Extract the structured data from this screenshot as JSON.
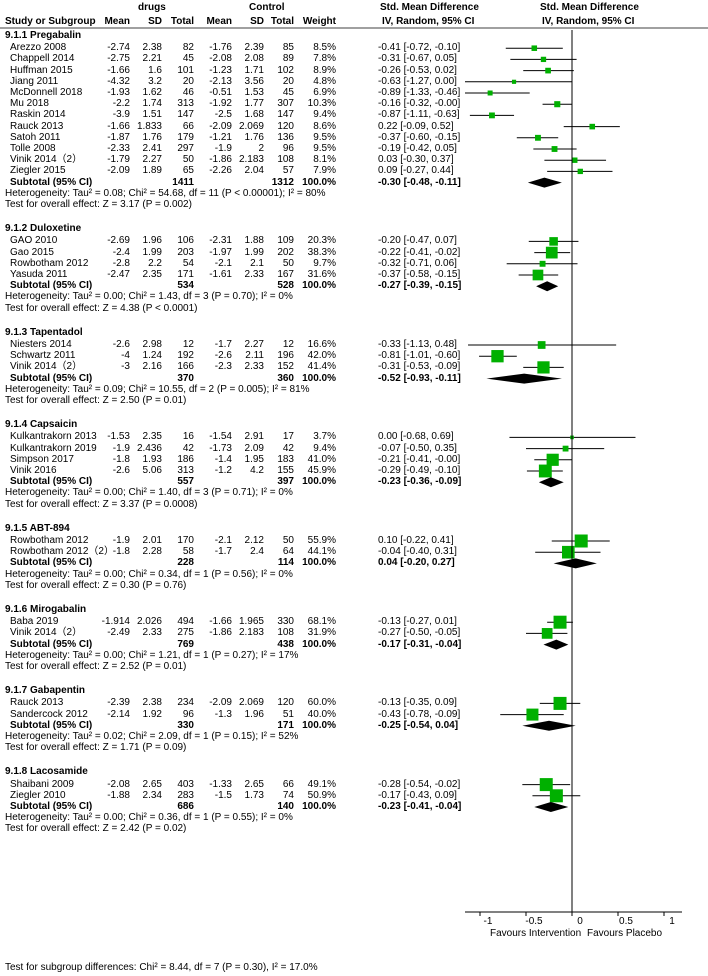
{
  "headers": {
    "study": "Study or Subgroup",
    "drugs": "drugs",
    "control": "Control",
    "mean": "Mean",
    "sd": "SD",
    "total": "Total",
    "weight": "Weight",
    "smd_title": "Std. Mean Difference",
    "smd_method": "IV, Random, 95% CI"
  },
  "axis": {
    "ticks": [
      "-1",
      "-0.5",
      "0",
      "0.5",
      "1"
    ],
    "left_label": "Favours Intervention",
    "right_label": "Favours Placebo"
  },
  "footer": "Test for subgroup differences: Chi² = 8.44, df = 7 (P = 0.30), I² = 17.0%",
  "colors": {
    "marker": "#00b000",
    "diamond": "#000000",
    "line": "#000000"
  },
  "chart_data": {
    "type": "forest",
    "xlim": [
      -1.5,
      1.5
    ],
    "groups": [
      {
        "title": "9.1.1 Pregabalin",
        "studies": [
          {
            "name": "Arezzo 2008",
            "m1": "-2.74",
            "sd1": "2.38",
            "n1": "82",
            "m2": "-1.76",
            "sd2": "2.39",
            "n2": "85",
            "weight": "8.5%",
            "ci": "-0.41 [-0.72, -0.10]",
            "est": -0.41,
            "lo": -0.72,
            "hi": -0.1,
            "w": 8.5
          },
          {
            "name": "Chappell 2014",
            "m1": "-2.75",
            "sd1": "2.21",
            "n1": "45",
            "m2": "-2.08",
            "sd2": "2.08",
            "n2": "89",
            "weight": "7.8%",
            "ci": "-0.31 [-0.67, 0.05]",
            "est": -0.31,
            "lo": -0.67,
            "hi": 0.05,
            "w": 7.8
          },
          {
            "name": "Huffman 2015",
            "m1": "-1.66",
            "sd1": "1.6",
            "n1": "101",
            "m2": "-1.23",
            "sd2": "1.71",
            "n2": "102",
            "weight": "8.9%",
            "ci": "-0.26 [-0.53, 0.02]",
            "est": -0.26,
            "lo": -0.53,
            "hi": 0.02,
            "w": 8.9
          },
          {
            "name": "Jiang 2011",
            "m1": "-4.32",
            "sd1": "3.2",
            "n1": "20",
            "m2": "-2.13",
            "sd2": "3.56",
            "n2": "20",
            "weight": "4.8%",
            "ci": "-0.63 [-1.27, 0.00]",
            "est": -0.63,
            "lo": -1.27,
            "hi": 0.0,
            "w": 4.8
          },
          {
            "name": "McDonnell 2018",
            "m1": "-1.93",
            "sd1": "1.62",
            "n1": "46",
            "m2": "-0.51",
            "sd2": "1.53",
            "n2": "45",
            "weight": "6.9%",
            "ci": "-0.89 [-1.33, -0.46]",
            "est": -0.89,
            "lo": -1.33,
            "hi": -0.46,
            "w": 6.9
          },
          {
            "name": "Mu 2018",
            "m1": "-2.2",
            "sd1": "1.74",
            "n1": "313",
            "m2": "-1.92",
            "sd2": "1.77",
            "n2": "307",
            "weight": "10.3%",
            "ci": "-0.16 [-0.32, -0.00]",
            "est": -0.16,
            "lo": -0.32,
            "hi": -0.0,
            "w": 10.3
          },
          {
            "name": "Raskin 2014",
            "m1": "-3.9",
            "sd1": "1.51",
            "n1": "147",
            "m2": "-2.5",
            "sd2": "1.68",
            "n2": "147",
            "weight": "9.4%",
            "ci": "-0.87 [-1.11, -0.63]",
            "est": -0.87,
            "lo": -1.11,
            "hi": -0.63,
            "w": 9.4
          },
          {
            "name": "Rauck 2013",
            "m1": "-1.66",
            "sd1": "1.833",
            "n1": "66",
            "m2": "-2.09",
            "sd2": "2.069",
            "n2": "120",
            "weight": "8.6%",
            "ci": "0.22 [-0.09, 0.52]",
            "est": 0.22,
            "lo": -0.09,
            "hi": 0.52,
            "w": 8.6
          },
          {
            "name": "Satoh 2011",
            "m1": "-1.87",
            "sd1": "1.76",
            "n1": "179",
            "m2": "-1.21",
            "sd2": "1.76",
            "n2": "136",
            "weight": "9.5%",
            "ci": "-0.37 [-0.60, -0.15]",
            "est": -0.37,
            "lo": -0.6,
            "hi": -0.15,
            "w": 9.5
          },
          {
            "name": "Tolle 2008",
            "m1": "-2.33",
            "sd1": "2.41",
            "n1": "297",
            "m2": "-1.9",
            "sd2": "2",
            "n2": "96",
            "weight": "9.5%",
            "ci": "-0.19 [-0.42, 0.05]",
            "est": -0.19,
            "lo": -0.42,
            "hi": 0.05,
            "w": 9.5
          },
          {
            "name": "Vinik 2014（2）",
            "m1": "-1.79",
            "sd1": "2.27",
            "n1": "50",
            "m2": "-1.86",
            "sd2": "2.183",
            "n2": "108",
            "weight": "8.1%",
            "ci": "0.03 [-0.30, 0.37]",
            "est": 0.03,
            "lo": -0.3,
            "hi": 0.37,
            "w": 8.1
          },
          {
            "name": "Ziegler 2015",
            "m1": "-2.09",
            "sd1": "1.89",
            "n1": "65",
            "m2": "-2.26",
            "sd2": "2.04",
            "n2": "57",
            "weight": "7.9%",
            "ci": "0.09 [-0.27, 0.44]",
            "est": 0.09,
            "lo": -0.27,
            "hi": 0.44,
            "w": 7.9
          }
        ],
        "subtotal": {
          "label": "Subtotal (95% CI)",
          "n1": "1411",
          "n2": "1312",
          "weight": "100.0%",
          "ci": "-0.30 [-0.48, -0.11]",
          "est": -0.3,
          "lo": -0.48,
          "hi": -0.11
        },
        "het": "Heterogeneity: Tau² = 0.08; Chi² = 54.68, df = 11 (P < 0.00001); I² = 80%",
        "test": "Test for overall effect: Z = 3.17 (P = 0.002)"
      },
      {
        "title": "9.1.2 Duloxetine",
        "studies": [
          {
            "name": "GAO 2010",
            "m1": "-2.69",
            "sd1": "1.96",
            "n1": "106",
            "m2": "-2.31",
            "sd2": "1.88",
            "n2": "109",
            "weight": "20.3%",
            "ci": "-0.20 [-0.47, 0.07]",
            "est": -0.2,
            "lo": -0.47,
            "hi": 0.07,
            "w": 20.3
          },
          {
            "name": "Gao 2015",
            "m1": "-2.4",
            "sd1": "1.99",
            "n1": "203",
            "m2": "-1.97",
            "sd2": "1.99",
            "n2": "202",
            "weight": "38.3%",
            "ci": "-0.22 [-0.41, -0.02]",
            "est": -0.22,
            "lo": -0.41,
            "hi": -0.02,
            "w": 38.3
          },
          {
            "name": "Rowbotham 2012",
            "m1": "-2.8",
            "sd1": "2.2",
            "n1": "54",
            "m2": "-2.1",
            "sd2": "2.1",
            "n2": "50",
            "weight": "9.7%",
            "ci": "-0.32 [-0.71, 0.06]",
            "est": -0.32,
            "lo": -0.71,
            "hi": 0.06,
            "w": 9.7
          },
          {
            "name": "Yasuda 2011",
            "m1": "-2.47",
            "sd1": "2.35",
            "n1": "171",
            "m2": "-1.61",
            "sd2": "2.33",
            "n2": "167",
            "weight": "31.6%",
            "ci": "-0.37 [-0.58, -0.15]",
            "est": -0.37,
            "lo": -0.58,
            "hi": -0.15,
            "w": 31.6
          }
        ],
        "subtotal": {
          "label": "Subtotal (95% CI)",
          "n1": "534",
          "n2": "528",
          "weight": "100.0%",
          "ci": "-0.27 [-0.39, -0.15]",
          "est": -0.27,
          "lo": -0.39,
          "hi": -0.15
        },
        "het": "Heterogeneity: Tau² = 0.00; Chi² = 1.43, df = 3 (P = 0.70); I² = 0%",
        "test": "Test for overall effect: Z = 4.38 (P < 0.0001)"
      },
      {
        "title": "9.1.3 Tapentadol",
        "studies": [
          {
            "name": "Niesters 2014",
            "m1": "-2.6",
            "sd1": "2.98",
            "n1": "12",
            "m2": "-1.7",
            "sd2": "2.27",
            "n2": "12",
            "weight": "16.6%",
            "ci": "-0.33 [-1.13, 0.48]",
            "est": -0.33,
            "lo": -1.13,
            "hi": 0.48,
            "w": 16.6
          },
          {
            "name": "Schwartz 2011",
            "m1": "-4",
            "sd1": "1.24",
            "n1": "192",
            "m2": "-2.6",
            "sd2": "2.11",
            "n2": "196",
            "weight": "42.0%",
            "ci": "-0.81 [-1.01, -0.60]",
            "est": -0.81,
            "lo": -1.01,
            "hi": -0.6,
            "w": 42.0
          },
          {
            "name": "Vinik 2014（2）",
            "m1": "-3",
            "sd1": "2.16",
            "n1": "166",
            "m2": "-2.3",
            "sd2": "2.33",
            "n2": "152",
            "weight": "41.4%",
            "ci": "-0.31 [-0.53, -0.09]",
            "est": -0.31,
            "lo": -0.53,
            "hi": -0.09,
            "w": 41.4
          }
        ],
        "subtotal": {
          "label": "Subtotal (95% CI)",
          "n1": "370",
          "n2": "360",
          "weight": "100.0%",
          "ci": "-0.52 [-0.93, -0.11]",
          "est": -0.52,
          "lo": -0.93,
          "hi": -0.11
        },
        "het": "Heterogeneity: Tau² = 0.09; Chi² = 10.55, df = 2 (P = 0.005); I² = 81%",
        "test": "Test for overall effect: Z = 2.50 (P = 0.01)"
      },
      {
        "title": "9.1.4 Capsaicin",
        "studies": [
          {
            "name": "Kulkantrakorn 2013",
            "m1": "-1.53",
            "sd1": "2.35",
            "n1": "16",
            "m2": "-1.54",
            "sd2": "2.91",
            "n2": "17",
            "weight": "3.7%",
            "ci": "0.00 [-0.68, 0.69]",
            "est": 0.0,
            "lo": -0.68,
            "hi": 0.69,
            "w": 3.7
          },
          {
            "name": "Kulkantrakorn 2019",
            "m1": "-1.9",
            "sd1": "2.436",
            "n1": "42",
            "m2": "-1.73",
            "sd2": "2.09",
            "n2": "42",
            "weight": "9.4%",
            "ci": "-0.07 [-0.50, 0.35]",
            "est": -0.07,
            "lo": -0.5,
            "hi": 0.35,
            "w": 9.4
          },
          {
            "name": "Simpson 2017",
            "m1": "-1.8",
            "sd1": "1.93",
            "n1": "186",
            "m2": "-1.4",
            "sd2": "1.95",
            "n2": "183",
            "weight": "41.0%",
            "ci": "-0.21 [-0.41, -0.00]",
            "est": -0.21,
            "lo": -0.41,
            "hi": -0.0,
            "w": 41.0
          },
          {
            "name": "Vinik 2016",
            "m1": "-2.6",
            "sd1": "5.06",
            "n1": "313",
            "m2": "-1.2",
            "sd2": "4.2",
            "n2": "155",
            "weight": "45.9%",
            "ci": "-0.29 [-0.49, -0.10]",
            "est": -0.29,
            "lo": -0.49,
            "hi": -0.1,
            "w": 45.9
          }
        ],
        "subtotal": {
          "label": "Subtotal (95% CI)",
          "n1": "557",
          "n2": "397",
          "weight": "100.0%",
          "ci": "-0.23 [-0.36, -0.09]",
          "est": -0.23,
          "lo": -0.36,
          "hi": -0.09
        },
        "het": "Heterogeneity: Tau² = 0.00; Chi² = 1.40, df = 3 (P = 0.71); I² = 0%",
        "test": "Test for overall effect: Z = 3.37 (P = 0.0008)"
      },
      {
        "title": "9.1.5 ABT-894",
        "studies": [
          {
            "name": "Rowbotham 2012",
            "m1": "-1.9",
            "sd1": "2.01",
            "n1": "170",
            "m2": "-2.1",
            "sd2": "2.12",
            "n2": "50",
            "weight": "55.9%",
            "ci": "0.10 [-0.22, 0.41]",
            "est": 0.1,
            "lo": -0.22,
            "hi": 0.41,
            "w": 55.9
          },
          {
            "name": "Rowbotham 2012（2）",
            "m1": "-1.8",
            "sd1": "2.28",
            "n1": "58",
            "m2": "-1.7",
            "sd2": "2.4",
            "n2": "64",
            "weight": "44.1%",
            "ci": "-0.04 [-0.40, 0.31]",
            "est": -0.04,
            "lo": -0.4,
            "hi": 0.31,
            "w": 44.1
          }
        ],
        "subtotal": {
          "label": "Subtotal (95% CI)",
          "n1": "228",
          "n2": "114",
          "weight": "100.0%",
          "ci": "0.04 [-0.20, 0.27]",
          "est": 0.04,
          "lo": -0.2,
          "hi": 0.27
        },
        "het": "Heterogeneity: Tau² = 0.00; Chi² = 0.34, df = 1 (P = 0.56); I² = 0%",
        "test": "Test for overall effect: Z = 0.30 (P = 0.76)"
      },
      {
        "title": "9.1.6 Mirogabalin",
        "studies": [
          {
            "name": "Baba 2019",
            "m1": "-1.914",
            "sd1": "2.026",
            "n1": "494",
            "m2": "-1.66",
            "sd2": "1.965",
            "n2": "330",
            "weight": "68.1%",
            "ci": "-0.13 [-0.27, 0.01]",
            "est": -0.13,
            "lo": -0.27,
            "hi": 0.01,
            "w": 68.1
          },
          {
            "name": "Vinik 2014（2）",
            "m1": "-2.49",
            "sd1": "2.33",
            "n1": "275",
            "m2": "-1.86",
            "sd2": "2.183",
            "n2": "108",
            "weight": "31.9%",
            "ci": "-0.27 [-0.50, -0.05]",
            "est": -0.27,
            "lo": -0.5,
            "hi": -0.05,
            "w": 31.9
          }
        ],
        "subtotal": {
          "label": "Subtotal (95% CI)",
          "n1": "769",
          "n2": "438",
          "weight": "100.0%",
          "ci": "-0.17 [-0.31, -0.04]",
          "est": -0.17,
          "lo": -0.31,
          "hi": -0.04
        },
        "het": "Heterogeneity: Tau² = 0.00; Chi² = 1.21, df = 1 (P = 0.27); I² = 17%",
        "test": "Test for overall effect: Z = 2.52 (P = 0.01)"
      },
      {
        "title": "9.1.7 Gabapentin",
        "studies": [
          {
            "name": "Rauck 2013",
            "m1": "-2.39",
            "sd1": "2.38",
            "n1": "234",
            "m2": "-2.09",
            "sd2": "2.069",
            "n2": "120",
            "weight": "60.0%",
            "ci": "-0.13 [-0.35, 0.09]",
            "est": -0.13,
            "lo": -0.35,
            "hi": 0.09,
            "w": 60.0
          },
          {
            "name": "Sandercock 2012",
            "m1": "-2.14",
            "sd1": "1.92",
            "n1": "96",
            "m2": "-1.3",
            "sd2": "1.96",
            "n2": "51",
            "weight": "40.0%",
            "ci": "-0.43 [-0.78, -0.09]",
            "est": -0.43,
            "lo": -0.78,
            "hi": -0.09,
            "w": 40.0
          }
        ],
        "subtotal": {
          "label": "Subtotal (95% CI)",
          "n1": "330",
          "n2": "171",
          "weight": "100.0%",
          "ci": "-0.25 [-0.54, 0.04]",
          "est": -0.25,
          "lo": -0.54,
          "hi": 0.04
        },
        "het": "Heterogeneity: Tau² = 0.02; Chi² = 2.09, df = 1 (P = 0.15); I² = 52%",
        "test": "Test for overall effect: Z = 1.71 (P = 0.09)"
      },
      {
        "title": "9.1.8 Lacosamide",
        "studies": [
          {
            "name": "Shaibani 2009",
            "m1": "-2.08",
            "sd1": "2.65",
            "n1": "403",
            "m2": "-1.33",
            "sd2": "2.65",
            "n2": "66",
            "weight": "49.1%",
            "ci": "-0.28 [-0.54, -0.02]",
            "est": -0.28,
            "lo": -0.54,
            "hi": -0.02,
            "w": 49.1
          },
          {
            "name": "Ziegler 2010",
            "m1": "-1.88",
            "sd1": "2.34",
            "n1": "283",
            "m2": "-1.5",
            "sd2": "1.73",
            "n2": "74",
            "weight": "50.9%",
            "ci": "-0.17 [-0.43, 0.09]",
            "est": -0.17,
            "lo": -0.43,
            "hi": 0.09,
            "w": 50.9
          }
        ],
        "subtotal": {
          "label": "Subtotal (95% CI)",
          "n1": "686",
          "n2": "140",
          "weight": "100.0%",
          "ci": "-0.23 [-0.41, -0.04]",
          "est": -0.23,
          "lo": -0.41,
          "hi": -0.04
        },
        "het": "Heterogeneity: Tau² = 0.00; Chi² = 0.36, df = 1 (P = 0.55); I² = 0%",
        "test": "Test for overall effect: Z = 2.42 (P = 0.02)"
      }
    ]
  }
}
